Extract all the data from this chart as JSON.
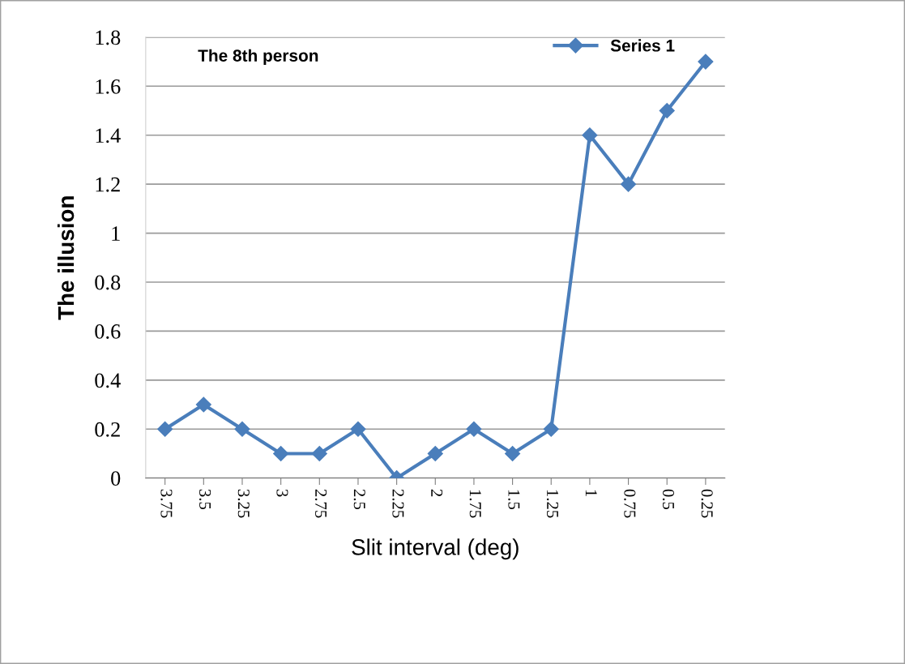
{
  "chart_data": {
    "type": "line",
    "xlabel": "Slit interval (deg)",
    "ylabel": "The illusion",
    "annotations": [
      "The 8th person"
    ],
    "categories": [
      "3.75",
      "3.5",
      "3.25",
      "3",
      "2.75",
      "2.5",
      "2.25",
      "2",
      "1.75",
      "1.5",
      "1.25",
      "1",
      "0.75",
      "0.5",
      "0.25"
    ],
    "series": [
      {
        "name": "Series 1",
        "color": "#4a7ebb",
        "values": [
          0.2,
          0.3,
          0.2,
          0.1,
          0.1,
          0.2,
          0,
          0.1,
          0.2,
          0.1,
          0.2,
          1.4,
          1.2,
          1.5,
          1.7
        ]
      }
    ],
    "ylim": [
      0,
      1.8
    ],
    "yticks": [
      0,
      0.2,
      0.4,
      0.6,
      0.8,
      1,
      1.2,
      1.4,
      1.6,
      1.8
    ],
    "grid": "y",
    "legend": "top right",
    "marker": "diamond",
    "line_style": "solid"
  }
}
